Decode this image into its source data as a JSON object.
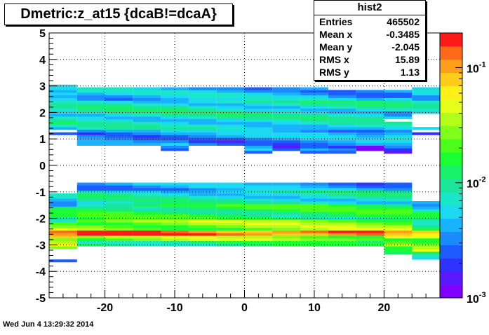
{
  "title": "Dmetric:z_at15 {dcaB!=dcaA}",
  "stats_box": {
    "title": "hist2",
    "rows": [
      {
        "label": "Entries",
        "value": "465502"
      },
      {
        "label": "Mean x",
        "value": "-0.3485"
      },
      {
        "label": "Mean y",
        "value": "-2.045"
      },
      {
        "label": "RMS x",
        "value": "15.89"
      },
      {
        "label": "RMS y",
        "value": "1.13"
      }
    ]
  },
  "timestamp": "Wed Jun  4 13:29:32 2014",
  "colors": {
    "palette": [
      "#7f00ff",
      "#5a1aff",
      "#2e33ff",
      "#1f5cff",
      "#1a8cff",
      "#19b2ff",
      "#1ad9f0",
      "#1ae6c8",
      "#19e69a",
      "#19f06a",
      "#1aff33",
      "#4cff1a",
      "#80ff1a",
      "#b3ff1a",
      "#e6ff1a",
      "#fff01a",
      "#ffcc1a",
      "#ff9e1a",
      "#ff6a1a",
      "#ff1a1a"
    ]
  },
  "chart_data": {
    "type": "heatmap",
    "x_ticks": [
      "-20",
      "-10",
      "0",
      "10",
      "20"
    ],
    "y_ticks": [
      "-5",
      "-4",
      "-3",
      "-2",
      "-1",
      "0",
      "1",
      "2",
      "3",
      "4",
      "5"
    ],
    "xlim": [
      -28,
      28
    ],
    "ylim": [
      -5,
      5
    ],
    "x_bin_edges": [
      -28,
      -24,
      -20,
      -16,
      -12,
      -8,
      -4,
      0,
      4,
      8,
      12,
      16,
      20,
      24,
      28
    ],
    "y_bin_width": 0.1,
    "colorbar": {
      "scale": "log",
      "range": [
        0.001,
        0.2
      ],
      "tick_labels": [
        "10^{-1}",
        "10^{-2}",
        "10^{-3}"
      ],
      "tick_values": [
        0.1,
        0.01,
        0.001
      ]
    },
    "grid": true,
    "columns": [
      {
        "x": -26,
        "bands": [
          [
            -3.65,
            -3.55,
            0.003
          ],
          [
            -3.15,
            -3.05,
            0.02
          ],
          [
            -3.05,
            -2.75,
            0.05
          ],
          [
            -2.75,
            -2.45,
            0.1
          ],
          [
            -2.45,
            -2.15,
            0.03
          ],
          [
            -2.15,
            -1.55,
            0.012
          ],
          [
            -1.55,
            -1.05,
            0.005
          ],
          [
            1.15,
            1.25,
            0.004
          ],
          [
            1.35,
            1.55,
            0.005
          ],
          [
            1.55,
            2.05,
            0.008
          ],
          [
            2.05,
            2.75,
            0.007
          ],
          [
            2.75,
            3.05,
            0.004
          ]
        ]
      },
      {
        "x": -22,
        "bands": [
          [
            -3.05,
            -2.85,
            0.012
          ],
          [
            -2.85,
            -2.65,
            0.03
          ],
          [
            -2.65,
            -2.45,
            0.15
          ],
          [
            -2.45,
            -2.05,
            0.03
          ],
          [
            -2.05,
            -1.45,
            0.015
          ],
          [
            -1.45,
            -0.95,
            0.008
          ],
          [
            -0.95,
            -0.65,
            0.004
          ],
          [
            0.75,
            0.95,
            0.003
          ],
          [
            0.95,
            1.35,
            0.004
          ],
          [
            1.35,
            1.75,
            0.007
          ],
          [
            1.75,
            2.45,
            0.008
          ],
          [
            2.45,
            2.95,
            0.005
          ]
        ]
      },
      {
        "x": -18,
        "bands": [
          [
            -3.05,
            -2.85,
            0.012
          ],
          [
            -2.85,
            -2.65,
            0.03
          ],
          [
            -2.65,
            -2.45,
            0.15
          ],
          [
            -2.45,
            -2.05,
            0.03
          ],
          [
            -2.05,
            -1.45,
            0.015
          ],
          [
            -1.45,
            -0.95,
            0.008
          ],
          [
            -0.95,
            -0.65,
            0.004
          ],
          [
            0.75,
            0.95,
            0.003
          ],
          [
            0.95,
            1.35,
            0.004
          ],
          [
            1.35,
            1.75,
            0.007
          ],
          [
            1.75,
            2.45,
            0.008
          ],
          [
            2.45,
            2.95,
            0.005
          ]
        ]
      },
      {
        "x": -14,
        "bands": [
          [
            -3.05,
            -2.85,
            0.012
          ],
          [
            -2.85,
            -2.65,
            0.03
          ],
          [
            -2.65,
            -2.45,
            0.15
          ],
          [
            -2.45,
            -2.05,
            0.03
          ],
          [
            -2.05,
            -1.45,
            0.015
          ],
          [
            -1.45,
            -0.95,
            0.008
          ],
          [
            -0.95,
            -0.65,
            0.004
          ],
          [
            0.75,
            0.95,
            0.003
          ],
          [
            0.95,
            1.35,
            0.004
          ],
          [
            1.35,
            1.75,
            0.007
          ],
          [
            1.75,
            2.45,
            0.008
          ],
          [
            2.45,
            2.95,
            0.005
          ]
        ]
      },
      {
        "x": -10,
        "bands": [
          [
            -3.05,
            -2.85,
            0.012
          ],
          [
            -2.85,
            -2.65,
            0.03
          ],
          [
            -2.65,
            -2.45,
            0.15
          ],
          [
            -2.45,
            -2.05,
            0.03
          ],
          [
            -2.05,
            -1.45,
            0.015
          ],
          [
            -1.45,
            -0.95,
            0.008
          ],
          [
            -0.95,
            -0.65,
            0.004
          ],
          [
            0.55,
            0.75,
            0.002
          ],
          [
            0.75,
            1.35,
            0.004
          ],
          [
            1.35,
            1.75,
            0.007
          ],
          [
            1.75,
            2.45,
            0.008
          ],
          [
            2.45,
            2.95,
            0.005
          ]
        ]
      },
      {
        "x": -6,
        "bands": [
          [
            -3.05,
            -2.85,
            0.012
          ],
          [
            -2.85,
            -2.65,
            0.03
          ],
          [
            -2.65,
            -2.45,
            0.15
          ],
          [
            -2.45,
            -2.05,
            0.03
          ],
          [
            -2.05,
            -1.45,
            0.015
          ],
          [
            -1.45,
            -0.95,
            0.008
          ],
          [
            -0.95,
            -0.65,
            0.004
          ],
          [
            0.75,
            0.95,
            0.003
          ],
          [
            0.95,
            1.35,
            0.004
          ],
          [
            1.35,
            1.75,
            0.007
          ],
          [
            1.75,
            2.45,
            0.008
          ],
          [
            2.45,
            2.95,
            0.005
          ]
        ]
      },
      {
        "x": -2,
        "bands": [
          [
            -3.05,
            -2.85,
            0.012
          ],
          [
            -2.85,
            -2.65,
            0.03
          ],
          [
            -2.65,
            -2.45,
            0.15
          ],
          [
            -2.45,
            -2.05,
            0.03
          ],
          [
            -2.05,
            -1.45,
            0.015
          ],
          [
            -1.45,
            -0.95,
            0.008
          ],
          [
            -0.95,
            -0.65,
            0.004
          ],
          [
            0.75,
            0.95,
            0.003
          ],
          [
            0.95,
            1.35,
            0.004
          ],
          [
            1.35,
            1.75,
            0.007
          ],
          [
            1.75,
            2.45,
            0.008
          ],
          [
            2.45,
            2.95,
            0.005
          ]
        ]
      },
      {
        "x": 2,
        "bands": [
          [
            -3.05,
            -2.85,
            0.012
          ],
          [
            -2.85,
            -2.65,
            0.03
          ],
          [
            -2.65,
            -2.45,
            0.15
          ],
          [
            -2.45,
            -2.05,
            0.03
          ],
          [
            -2.05,
            -1.45,
            0.015
          ],
          [
            -1.45,
            -0.95,
            0.008
          ],
          [
            -0.95,
            -0.65,
            0.004
          ],
          [
            0.45,
            0.55,
            0.002
          ],
          [
            0.55,
            1.35,
            0.004
          ],
          [
            1.35,
            1.75,
            0.007
          ],
          [
            1.75,
            2.45,
            0.008
          ],
          [
            2.45,
            2.95,
            0.005
          ]
        ]
      },
      {
        "x": 6,
        "bands": [
          [
            -3.05,
            -2.85,
            0.012
          ],
          [
            -2.85,
            -2.65,
            0.03
          ],
          [
            -2.65,
            -2.45,
            0.15
          ],
          [
            -2.45,
            -2.05,
            0.03
          ],
          [
            -2.05,
            -1.45,
            0.015
          ],
          [
            -1.45,
            -0.95,
            0.008
          ],
          [
            -0.95,
            -0.65,
            0.004
          ],
          [
            0.55,
            0.75,
            0.002
          ],
          [
            0.75,
            1.35,
            0.004
          ],
          [
            1.35,
            1.75,
            0.007
          ],
          [
            1.75,
            2.45,
            0.008
          ],
          [
            2.45,
            2.95,
            0.005
          ]
        ]
      },
      {
        "x": 10,
        "bands": [
          [
            -3.05,
            -2.85,
            0.012
          ],
          [
            -2.85,
            -2.65,
            0.03
          ],
          [
            -2.65,
            -2.45,
            0.15
          ],
          [
            -2.45,
            -2.05,
            0.03
          ],
          [
            -2.05,
            -1.45,
            0.015
          ],
          [
            -1.45,
            -0.95,
            0.008
          ],
          [
            -0.95,
            -0.65,
            0.004
          ],
          [
            0.45,
            0.55,
            0.002
          ],
          [
            0.55,
            1.35,
            0.004
          ],
          [
            1.35,
            1.75,
            0.007
          ],
          [
            1.75,
            2.45,
            0.008
          ],
          [
            2.45,
            2.95,
            0.005
          ]
        ]
      },
      {
        "x": 14,
        "bands": [
          [
            -3.05,
            -2.85,
            0.012
          ],
          [
            -2.85,
            -2.65,
            0.03
          ],
          [
            -2.65,
            -2.45,
            0.15
          ],
          [
            -2.45,
            -2.05,
            0.03
          ],
          [
            -2.05,
            -1.45,
            0.015
          ],
          [
            -1.45,
            -0.95,
            0.008
          ],
          [
            -0.95,
            -0.65,
            0.004
          ],
          [
            0.45,
            0.55,
            0.002
          ],
          [
            0.55,
            1.35,
            0.004
          ],
          [
            1.35,
            1.75,
            0.007
          ],
          [
            1.75,
            2.45,
            0.008
          ],
          [
            2.45,
            2.85,
            0.004
          ]
        ]
      },
      {
        "x": 18,
        "bands": [
          [
            -3.05,
            -2.85,
            0.012
          ],
          [
            -2.85,
            -2.65,
            0.03
          ],
          [
            -2.65,
            -2.45,
            0.15
          ],
          [
            -2.45,
            -2.05,
            0.03
          ],
          [
            -2.05,
            -1.45,
            0.015
          ],
          [
            -1.45,
            -0.95,
            0.008
          ],
          [
            -0.95,
            -0.65,
            0.004
          ],
          [
            0.55,
            0.75,
            0.002
          ],
          [
            0.75,
            1.35,
            0.004
          ],
          [
            1.35,
            1.75,
            0.007
          ],
          [
            1.75,
            2.45,
            0.008
          ],
          [
            2.45,
            2.85,
            0.004
          ]
        ]
      },
      {
        "x": 22,
        "bands": [
          [
            -3.35,
            -3.05,
            0.012
          ],
          [
            -3.05,
            -2.75,
            0.03
          ],
          [
            -2.75,
            -2.45,
            0.08
          ],
          [
            -2.45,
            -2.05,
            0.03
          ],
          [
            -2.05,
            -1.45,
            0.015
          ],
          [
            -1.45,
            -0.95,
            0.008
          ],
          [
            -0.95,
            -0.65,
            0.004
          ],
          [
            0.45,
            0.55,
            0.002
          ],
          [
            0.55,
            0.95,
            0.004
          ],
          [
            0.95,
            1.65,
            0.006
          ],
          [
            1.75,
            2.05,
            0.006
          ],
          [
            2.05,
            2.55,
            0.008
          ],
          [
            2.55,
            2.85,
            0.004
          ]
        ]
      },
      {
        "x": 26,
        "bands": [
          [
            -3.55,
            -3.25,
            0.01
          ],
          [
            -3.25,
            -2.75,
            0.03
          ],
          [
            -2.75,
            -2.45,
            0.05
          ],
          [
            -2.45,
            -1.75,
            0.012
          ],
          [
            -1.75,
            -1.35,
            0.006
          ],
          [
            1.15,
            1.25,
            0.004
          ],
          [
            1.35,
            1.45,
            0.005
          ],
          [
            1.95,
            2.45,
            0.007
          ],
          [
            2.45,
            2.85,
            0.006
          ],
          [
            2.85,
            2.95,
            0.004
          ]
        ]
      }
    ]
  }
}
